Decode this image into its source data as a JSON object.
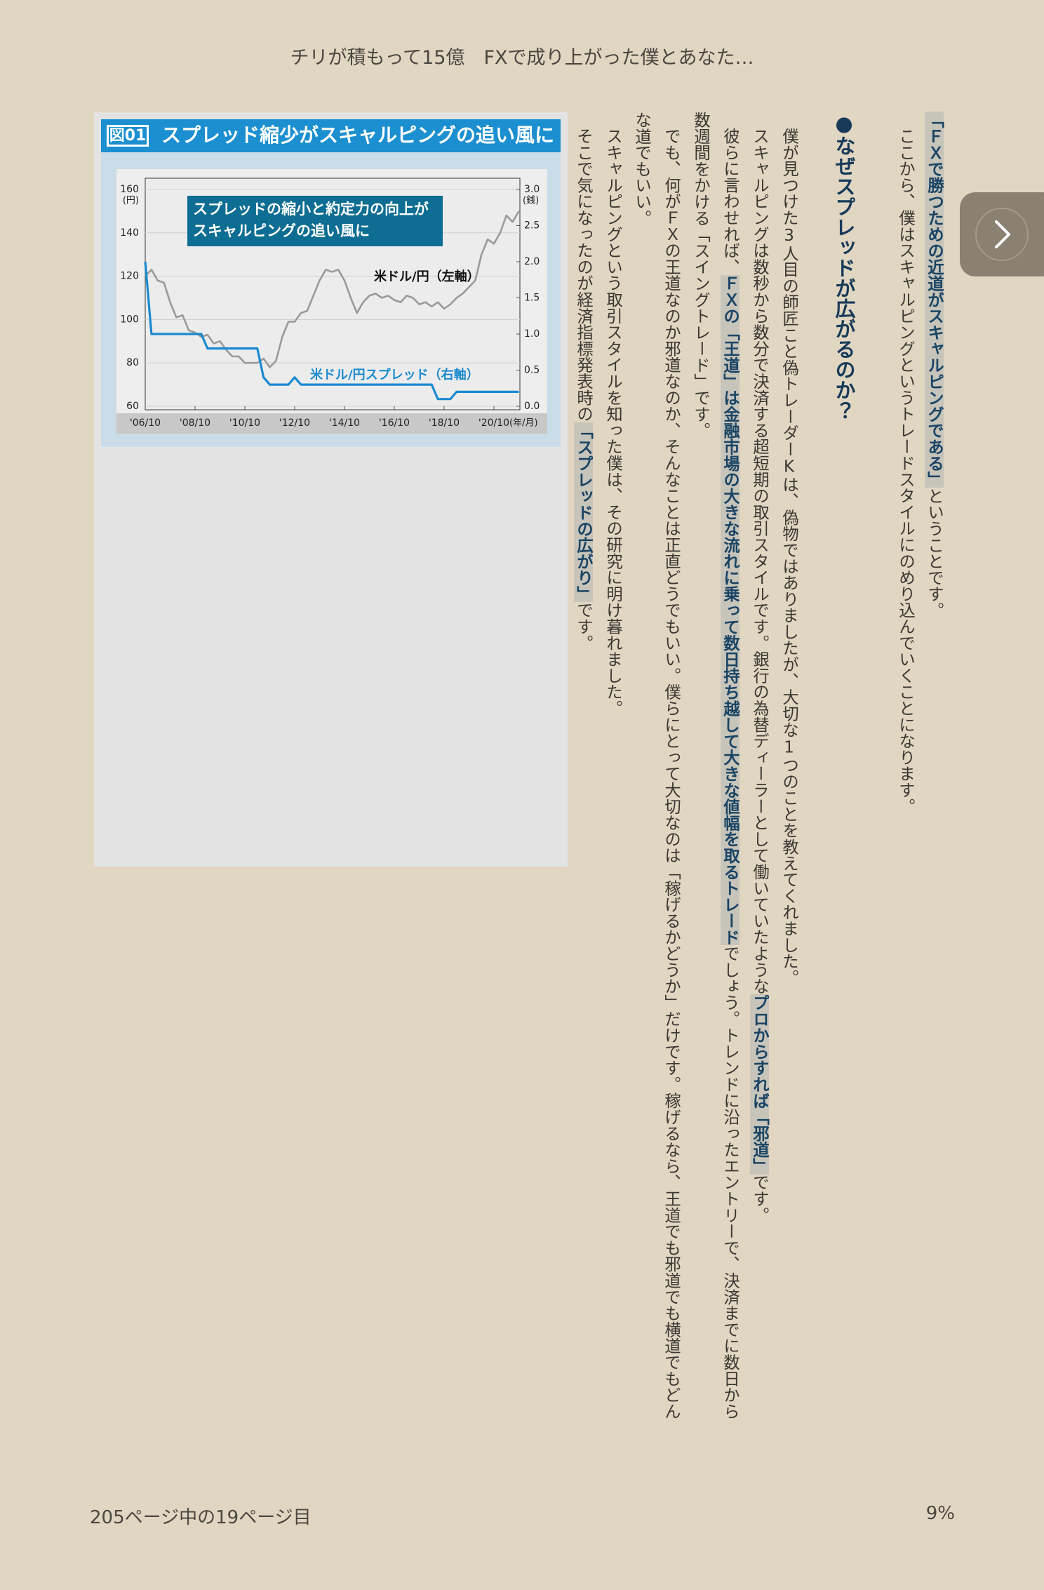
{
  "header": {
    "title": "チリが積もって15億　FXで成り上がった僕とあなた…"
  },
  "chart_data": {
    "type": "line",
    "figure_label": "図01",
    "title": "スプレッド縮少がスキャルピングの追い風に",
    "annotation": [
      "スプレッドの縮小と約定力の向上が",
      "スキャルピングの追い風に"
    ],
    "categories": [
      "'06/10",
      null,
      null,
      null,
      null,
      null,
      null,
      null,
      "'08/10",
      null,
      null,
      null,
      null,
      null,
      null,
      null,
      "'10/10",
      null,
      null,
      null,
      null,
      null,
      null,
      null,
      "'12/10",
      null,
      null,
      null,
      null,
      null,
      null,
      null,
      "'14/10",
      null,
      null,
      null,
      null,
      null,
      null,
      null,
      "'16/10",
      null,
      null,
      null,
      null,
      null,
      null,
      null,
      "'18/10",
      null,
      null,
      null,
      null,
      null,
      null,
      null,
      "'20/10",
      null,
      null,
      null,
      null
    ],
    "x_label": "(年/月)",
    "y_label": "(円)",
    "y2_label": "(銭)",
    "ylim": [
      60,
      160
    ],
    "yticks": [
      60,
      80,
      100,
      120,
      140,
      160
    ],
    "y2lim": [
      0,
      3
    ],
    "y2ticks": [
      {
        "value": 0,
        "label": "0.0"
      },
      {
        "value": 0.5,
        "label": "0.5"
      },
      {
        "value": 1,
        "label": "1.0"
      },
      {
        "value": 1.5,
        "label": "1.5"
      },
      {
        "value": 2,
        "label": "2.0"
      },
      {
        "value": 2.5,
        "label": "2.5"
      },
      {
        "value": 3,
        "label": "3.0"
      }
    ],
    "grid": true,
    "series": [
      {
        "name": "米ドル/円（左軸）",
        "color": "#9a9a9a",
        "values": [
          120,
          123,
          118,
          117,
          108,
          101,
          102,
          95,
          94,
          92,
          93,
          89,
          90,
          86,
          83,
          83,
          80,
          80,
          80,
          82,
          78,
          81,
          92,
          99,
          99,
          103,
          104,
          111,
          118,
          123,
          122,
          123,
          118,
          110,
          103,
          108,
          111,
          112,
          110,
          111,
          109,
          108,
          111,
          110,
          107,
          108,
          106,
          108,
          105,
          107,
          110,
          112,
          115,
          118,
          130,
          137,
          135,
          140,
          148,
          145,
          150
        ]
      },
      {
        "name": "米ドル/円スプレッド（右軸）",
        "color": "#1a8ad0",
        "axis": "y2",
        "values": [
          2.0,
          1.0,
          1.0,
          1.0,
          1.0,
          1.0,
          1.0,
          1.0,
          1.0,
          1.0,
          0.8,
          0.8,
          0.8,
          0.8,
          0.8,
          0.8,
          0.8,
          0.8,
          0.8,
          0.4,
          0.3,
          0.3,
          0.3,
          0.3,
          0.4,
          0.3,
          0.3,
          0.3,
          0.3,
          0.3,
          0.3,
          0.3,
          0.3,
          0.3,
          0.3,
          0.3,
          0.3,
          0.3,
          0.3,
          0.3,
          0.3,
          0.3,
          0.3,
          0.3,
          0.3,
          0.3,
          0.3,
          0.1,
          0.1,
          0.1,
          0.2,
          0.2,
          0.2,
          0.2,
          0.2,
          0.2,
          0.2,
          0.2,
          0.2,
          0.2,
          0.2
        ]
      }
    ]
  },
  "body": {
    "columns": [
      {
        "segments": [
          {
            "text": "「ＦＸで勝つための近道がスキャルピングである」",
            "em": true
          },
          {
            "text": "ということです。"
          }
        ]
      },
      {
        "indent": true,
        "segments": [
          {
            "text": "ここから、僕はスキャルピングというトレードスタイルにのめり込んでいくことになります。"
          }
        ]
      },
      {
        "heading": true,
        "segments": [
          {
            "text": "●なぜスプレッドが広がるのか？"
          }
        ]
      },
      {
        "indent": true,
        "segments": [
          {
            "text": "僕が見つけた3人目の師匠こと偽トレーダーKは、偽物ではありましたが、大切な1つのことを教えてくれました。"
          }
        ]
      },
      {
        "indent": true,
        "segments": [
          {
            "text": "スキャルピングは数秒から数分で決済する超短期の取引スタイルです。銀行の為替ディーラーとして働いていたような"
          },
          {
            "text": "プロからすれば「邪道」",
            "em": true
          },
          {
            "text": "です。"
          }
        ]
      },
      {
        "indent": true,
        "segments": [
          {
            "text": "彼らに言わせれば、"
          },
          {
            "text": "ＦＸの「王道」は金融市場の大きな流れに乗って数日持ち越して大きな値幅を取るトレード",
            "em": true
          },
          {
            "text": "でしょう。トレンドに沿ったエントリーで、決済までに数日から"
          }
        ]
      },
      {
        "segments": [
          {
            "text": "数週間をかける「スイングトレード」です。"
          }
        ]
      },
      {
        "indent": true,
        "segments": [
          {
            "text": "でも、何がＦＸの王道なのか邪道なのか、そんなことは正直どうでもいい。僕らにとって大切なのは「稼げるかどうか」だけです。稼げるなら、王道でも邪道でも横道でもどん"
          }
        ]
      },
      {
        "segments": [
          {
            "text": "な道でもいい。"
          }
        ]
      },
      {
        "indent": true,
        "segments": [
          {
            "text": "スキャルピングという取引スタイルを知った僕は、その研究に明け暮れました。"
          }
        ]
      },
      {
        "indent": true,
        "segments": [
          {
            "text": "そこで気になったのが経済指標発表時の"
          },
          {
            "text": "「スプレッドの広がり」",
            "em": true
          },
          {
            "text": "です。"
          }
        ]
      }
    ]
  },
  "footer": {
    "page": "205ページ中の19ページ目",
    "progress": "9%"
  }
}
